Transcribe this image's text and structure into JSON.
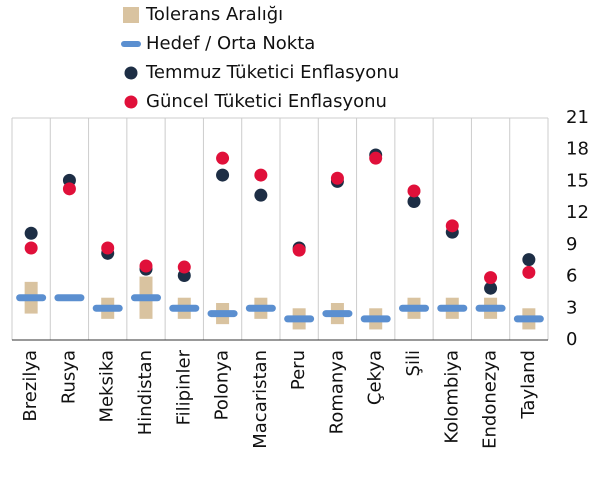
{
  "chart_data": {
    "type": "range_dot",
    "categories": [
      "Brezilya",
      "Rusya",
      "Meksika",
      "Hindistan",
      "Filipinler",
      "Polonya",
      "Macaristan",
      "Peru",
      "Romanya",
      "Çekya",
      "Şili",
      "Kolombiya",
      "Endonezya",
      "Tayland"
    ],
    "series": [
      {
        "name": "Tolerans Aralığı",
        "color": "#d9c3a0",
        "low": [
          2.5,
          null,
          2,
          2,
          2,
          1.5,
          2,
          1,
          1.5,
          1,
          2,
          2,
          2,
          1
        ],
        "high": [
          5.5,
          null,
          4,
          6,
          4,
          3.5,
          4,
          3,
          3.5,
          3,
          4,
          4,
          4,
          3
        ]
      },
      {
        "name": "Hedef / Orta Nokta",
        "color": "#5b8fd0",
        "values": [
          4,
          4,
          3,
          4,
          3,
          2.5,
          3,
          2,
          2.5,
          2,
          3,
          3,
          3,
          2
        ]
      },
      {
        "name": "Temmuz Tüketici Enflasyonu",
        "color": "#1d2e45",
        "values": [
          10.1,
          15.1,
          8.2,
          6.7,
          6.1,
          15.6,
          13.7,
          8.7,
          15.0,
          17.5,
          13.1,
          10.2,
          4.9,
          7.6
        ]
      },
      {
        "name": "Güncel Tüketici Enflasyonu",
        "color": "#e0103a",
        "values": [
          8.7,
          14.3,
          8.7,
          7.0,
          6.9,
          17.2,
          15.6,
          8.5,
          15.3,
          17.2,
          14.1,
          10.8,
          5.9,
          6.4
        ]
      }
    ],
    "ylim": [
      0,
      21
    ],
    "yticks": [
      0,
      3,
      6,
      9,
      12,
      15,
      18,
      21
    ],
    "grid": true
  }
}
